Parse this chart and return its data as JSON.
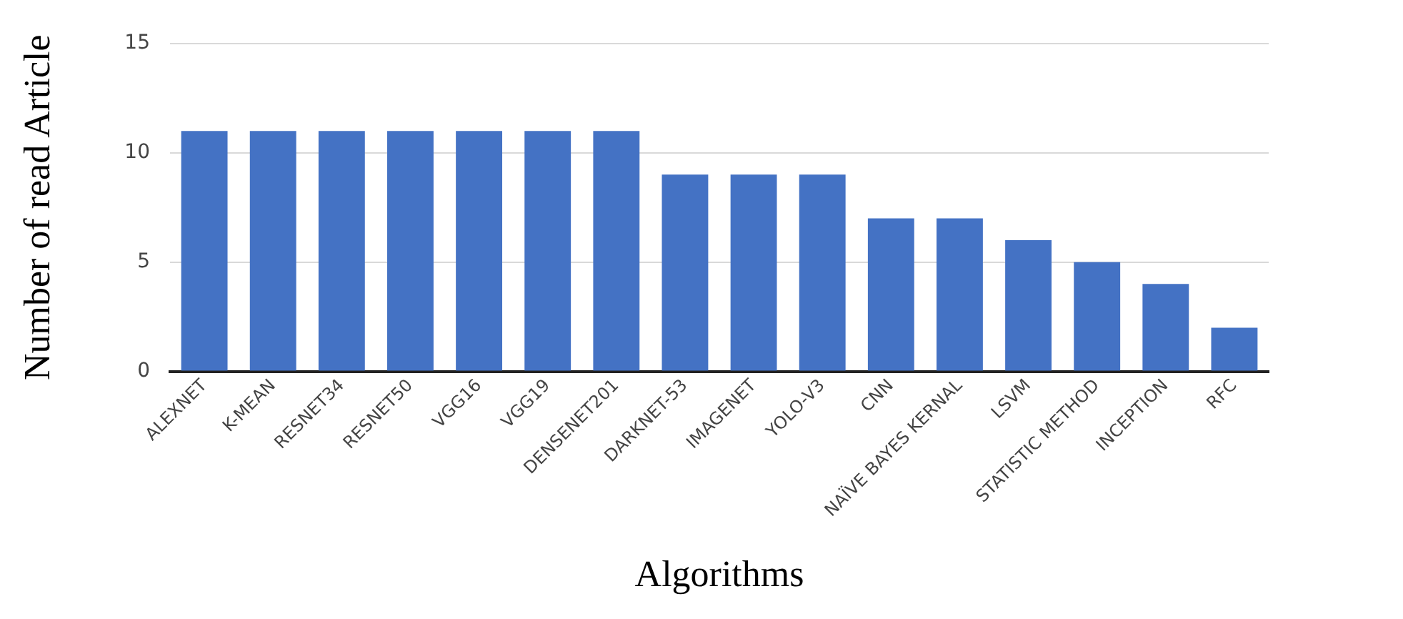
{
  "chart_data": {
    "type": "bar",
    "xlabel": "Algorithms",
    "ylabel": "Number of read Article",
    "categories": [
      "ALEXNET",
      "K-MEAN",
      "RESNET34",
      "RESNET50",
      "VGG16",
      "VGG19",
      "DENSENET201",
      "DARKNET-53",
      "IMAGENET",
      "YOLO-V3",
      "CNN",
      "NAÏVE BAYES KERNAL",
      "LSVM",
      "STATISTIC METHOD",
      "INCEPTION",
      "RFC"
    ],
    "values": [
      11,
      11,
      11,
      11,
      11,
      11,
      11,
      9,
      9,
      9,
      7,
      7,
      6,
      5,
      4,
      2
    ],
    "color": "#4472c4",
    "ylim": [
      0,
      15
    ],
    "yticks": [
      0,
      5,
      10,
      15
    ],
    "grid": "y"
  }
}
